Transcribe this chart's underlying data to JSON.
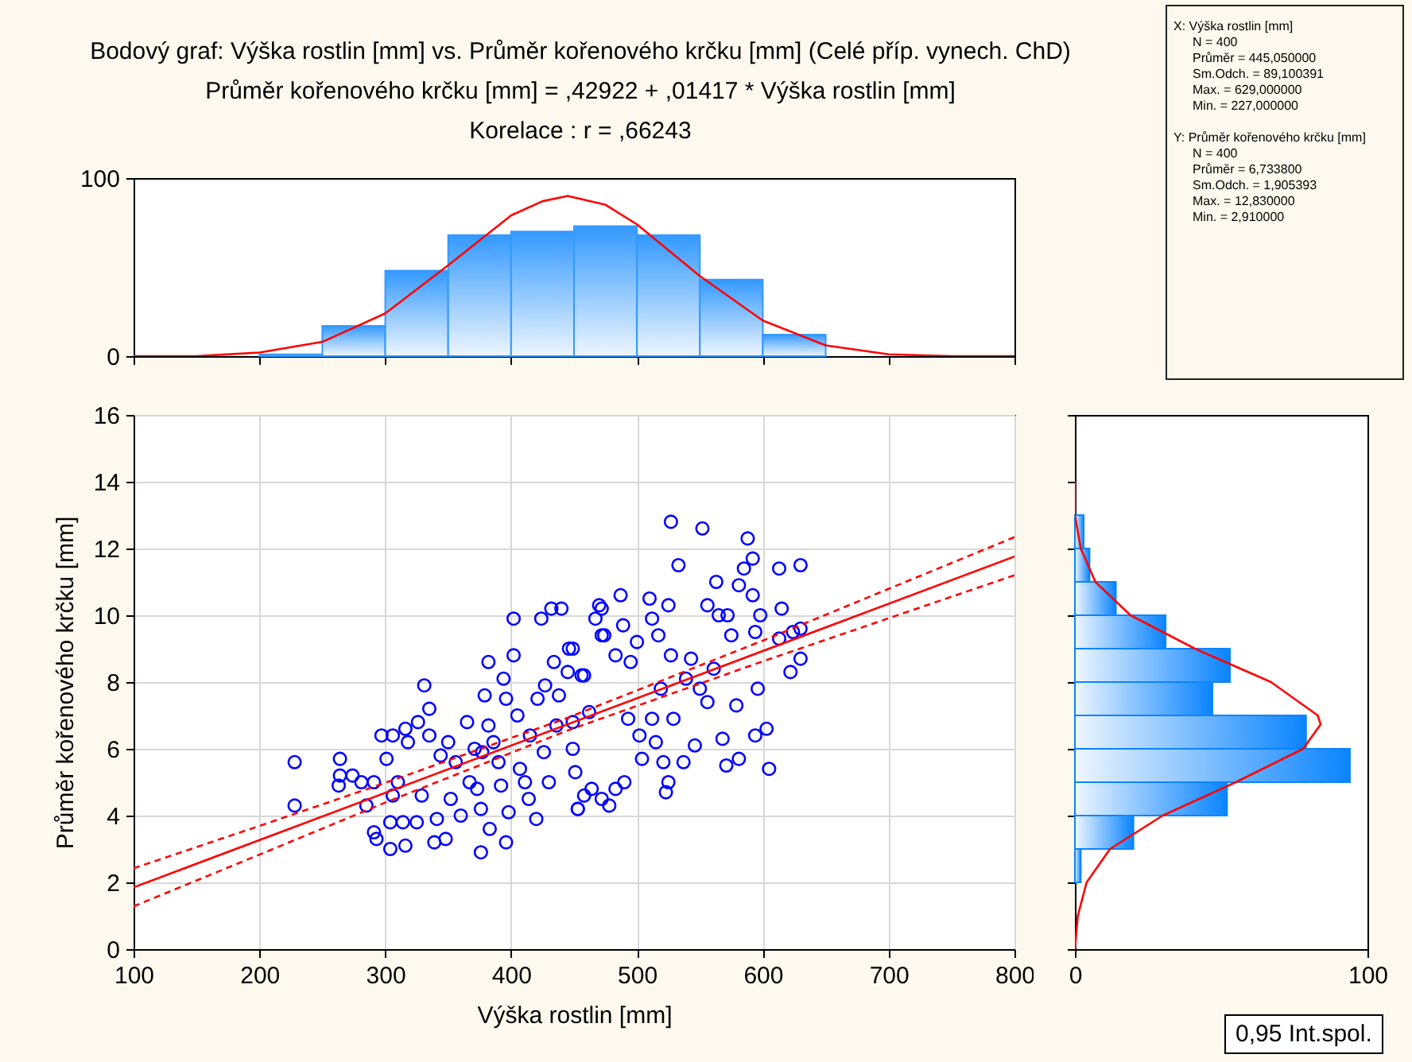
{
  "chart_data": [
    {
      "type": "histogram",
      "title": "Bodový graf: Výška rostlin [mm] vs. Průměr kořenového krčku [mm] (Celé příp. vynech. ChD)",
      "subtitle": "Průměr kořenového krčku [mm] = ,42922 + ,01417 * Výška rostlin [mm]",
      "annotations": [
        "Korelace :   r = ,66243"
      ],
      "xlim": [
        100,
        800
      ],
      "xticks": [
        100,
        200,
        300,
        400,
        500,
        600,
        700,
        800
      ],
      "ylim": [
        0,
        100
      ],
      "yticks": [
        0,
        100
      ],
      "tick_labels": "y",
      "grid": false,
      "series": [
        {
          "type": "histogram",
          "color": "#3399ff",
          "bins": [
            200,
            250,
            300,
            350,
            400,
            450,
            500,
            550,
            600,
            650
          ],
          "values": [
            1,
            17,
            48,
            68,
            70,
            73,
            68,
            43,
            12
          ]
        },
        {
          "type": "line",
          "color": "#ff0000",
          "x": [
            100,
            150,
            200,
            250,
            300,
            350,
            400,
            425,
            445,
            475,
            500,
            550,
            600,
            650,
            700,
            750,
            800
          ],
          "values": [
            0,
            0,
            2,
            8,
            24,
            51,
            79,
            87,
            90,
            85,
            74,
            45,
            20,
            6,
            1,
            0,
            0
          ]
        }
      ]
    },
    {
      "type": "scatter",
      "xlabel": "Výška rostlin [mm]",
      "ylabel": "Průměr kořenového krčku [mm]",
      "annotations": [
        "0,95 Int.spol."
      ],
      "xlim": [
        100,
        800
      ],
      "xticks": [
        100,
        200,
        300,
        400,
        500,
        600,
        700,
        800
      ],
      "ylim": [
        0,
        16
      ],
      "yticks": [
        0,
        2,
        4,
        6,
        8,
        10,
        12,
        14,
        16
      ],
      "grid": true,
      "series": [
        {
          "type": "scatter",
          "color": "#0000ff",
          "marker": "circle",
          "x": [
            228,
            228,
            264,
            264,
            263,
            274,
            281,
            285,
            291,
            291,
            293,
            297,
            306,
            301,
            304,
            304,
            306,
            310,
            314,
            316,
            316,
            318,
            325,
            326,
            329,
            331,
            335,
            335,
            339,
            341,
            344,
            348,
            350,
            352,
            356,
            360,
            365,
            367,
            371,
            373,
            376,
            376,
            377,
            379,
            382,
            382,
            383,
            386,
            390,
            392,
            394,
            396,
            396,
            398,
            402,
            402,
            405,
            407,
            411,
            414,
            415,
            420,
            421,
            424,
            426,
            427,
            430,
            432,
            434,
            436,
            438,
            440,
            445,
            446,
            449,
            451,
            453,
            456,
            462,
            464,
            467,
            470,
            472,
            449,
            458,
            449,
            453,
            458,
            472,
            478,
            472,
            474,
            483,
            487,
            483,
            489,
            490,
            493,
            495,
            500,
            502,
            504,
            510,
            512,
            512,
            515,
            517,
            519,
            521,
            523,
            525,
            527,
            527,
            525,
            529,
            533,
            537,
            539,
            543,
            546,
            552,
            550,
            556,
            556,
            561,
            563,
            565,
            568,
            571,
            572,
            575,
            579,
            581,
            581,
            585,
            588,
            592,
            592,
            594,
            594,
            596,
            598,
            603,
            605,
            613,
            613,
            615,
            622,
            624,
            630,
            630,
            630
          ],
          "values": [
            5.6,
            4.3,
            5.7,
            5.2,
            4.9,
            5.2,
            5.0,
            4.3,
            5.0,
            3.5,
            3.3,
            6.4,
            6.4,
            5.7,
            3.0,
            3.8,
            4.6,
            5.0,
            3.8,
            3.1,
            6.6,
            6.2,
            3.8,
            6.8,
            4.6,
            7.9,
            7.2,
            6.4,
            3.2,
            3.9,
            5.8,
            3.3,
            6.2,
            4.5,
            5.6,
            4.0,
            6.8,
            5.0,
            6.0,
            4.8,
            2.9,
            4.2,
            5.9,
            7.6,
            8.6,
            6.7,
            3.6,
            6.2,
            5.6,
            4.9,
            8.1,
            7.5,
            3.2,
            4.1,
            9.9,
            8.8,
            7.0,
            5.4,
            5.0,
            4.5,
            6.4,
            3.9,
            7.5,
            9.9,
            5.9,
            7.9,
            5.0,
            10.2,
            8.6,
            6.7,
            7.6,
            10.2,
            8.3,
            9.0,
            6.0,
            5.3,
            4.2,
            8.2,
            7.1,
            4.8,
            9.9,
            10.3,
            9.4,
            9.0,
            8.2,
            6.8,
            4.2,
            4.6,
            4.5,
            4.3,
            10.2,
            9.4,
            8.8,
            10.6,
            4.8,
            9.7,
            5.0,
            6.9,
            8.6,
            9.2,
            6.4,
            5.7,
            10.5,
            9.9,
            6.9,
            6.2,
            9.4,
            7.8,
            5.6,
            4.7,
            10.3,
            12.8,
            8.8,
            5.0,
            6.9,
            11.5,
            5.6,
            8.1,
            8.7,
            6.1,
            12.6,
            7.8,
            10.3,
            7.4,
            8.4,
            11.0,
            10.0,
            6.3,
            5.5,
            10.0,
            9.4,
            7.3,
            10.9,
            5.7,
            11.4,
            12.3,
            11.7,
            10.6,
            9.5,
            6.4,
            7.8,
            10.0,
            6.6,
            5.4,
            11.4,
            9.3,
            10.2,
            8.3,
            9.5,
            8.7,
            11.5,
            9.6
          ]
        },
        {
          "type": "line",
          "color": "#ff0000",
          "line_style": "solid",
          "x": [
            100,
            800
          ],
          "values": [
            1.85,
            11.76
          ]
        },
        {
          "type": "line",
          "color": "#ff0000",
          "line_style": "dashed",
          "x": [
            100,
            200,
            300,
            445,
            600,
            700,
            800
          ],
          "values": [
            2.42,
            3.69,
            4.98,
            6.93,
            9.24,
            10.79,
            12.34
          ]
        },
        {
          "type": "line",
          "color": "#ff0000",
          "line_style": "dashed",
          "x": [
            100,
            200,
            300,
            445,
            600,
            700,
            800
          ],
          "values": [
            1.28,
            2.83,
            4.39,
            6.55,
            8.62,
            9.91,
            11.2
          ]
        }
      ]
    },
    {
      "type": "histogram",
      "orientation": "horizontal",
      "xlim": [
        0,
        100
      ],
      "xticks": [
        0,
        100
      ],
      "ylim": [
        0,
        16
      ],
      "yticks": [
        0,
        2,
        4,
        6,
        8,
        10,
        12,
        14,
        16
      ],
      "tick_labels": "x",
      "grid": false,
      "series": [
        {
          "type": "histogram",
          "color": "#0a84ff",
          "bins": [
            2,
            3,
            4,
            5,
            6,
            7,
            8,
            9,
            10,
            11,
            12,
            13
          ],
          "values": [
            2,
            20,
            52,
            94,
            79,
            47,
            53,
            31,
            14,
            5,
            3
          ]
        },
        {
          "type": "line",
          "color": "#ff0000",
          "x": [
            0,
            1,
            2,
            3,
            4,
            5,
            6,
            6.73,
            7,
            8,
            9,
            10,
            11,
            12,
            13,
            14
          ],
          "values": [
            0,
            1,
            4,
            12,
            30,
            55,
            78,
            84,
            83,
            67,
            41,
            19,
            7,
            2,
            0,
            0
          ]
        }
      ]
    },
    {
      "type": "other",
      "annotations": [
        "X:  Výška rostlin [mm]",
        "N = 400",
        "Průměr = 445,050000",
        "Sm.Odch. = 89,100391",
        "Max. = 629,000000",
        "Min. = 227,000000",
        "Y:  Průměr kořenového krčku [mm]",
        "N = 400",
        "Průměr = 6,733800",
        "Sm.Odch. = 1,905393",
        "Max. = 12,830000",
        "Min. = 2,910000"
      ]
    }
  ]
}
